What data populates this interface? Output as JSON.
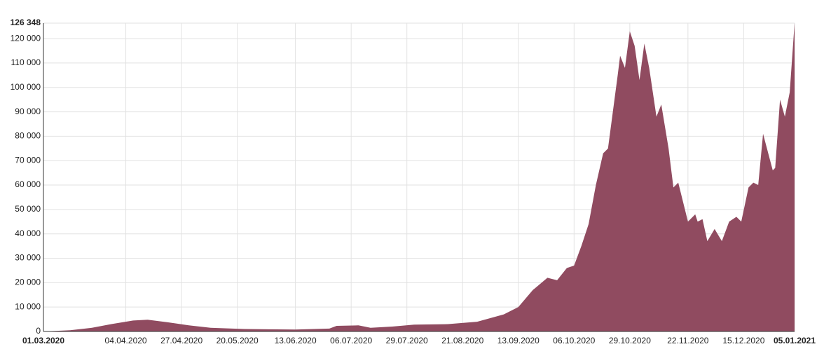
{
  "chart_data": {
    "type": "area",
    "color": "#904b60",
    "grid": true,
    "x": [
      "01.03.2020",
      "12.03.2020",
      "21.03.2020",
      "29.03.2020",
      "07.04.2020",
      "13.04.2020",
      "21.04.2020",
      "30.04.2020",
      "09.05.2020",
      "23.05.2020",
      "13.06.2020",
      "27.06.2020",
      "30.06.2020",
      "09.07.2020",
      "14.07.2020",
      "23.07.2020",
      "01.08.2020",
      "15.08.2020",
      "27.08.2020",
      "07.09.2020",
      "13.09.2020",
      "19.09.2020",
      "25.09.2020",
      "29.09.2020",
      "03.10.2020",
      "06.10.2020",
      "09.10.2020",
      "12.10.2020",
      "15.10.2020",
      "18.10.2020",
      "20.10.2020",
      "24.10.2020",
      "25.10.2020",
      "27.10.2020",
      "29.10.2020",
      "31.10.2020",
      "02.11.2020",
      "04.11.2020",
      "06.11.2020",
      "09.11.2020",
      "11.11.2020",
      "14.11.2020",
      "16.11.2020",
      "18.11.2020",
      "22.11.2020",
      "25.11.2020",
      "26.11.2020",
      "28.11.2020",
      "30.11.2020",
      "03.12.2020",
      "06.12.2020",
      "09.12.2020",
      "12.12.2020",
      "14.12.2020",
      "17.12.2020",
      "19.12.2020",
      "21.12.2020",
      "23.12.2020",
      "27.12.2020",
      "28.12.2020",
      "30.12.2020",
      "01.01.2021",
      "03.01.2021",
      "05.01.2021"
    ],
    "values": [
      0,
      500,
      1500,
      3000,
      4500,
      4800,
      3800,
      2500,
      1500,
      1000,
      800,
      1200,
      2300,
      2500,
      1500,
      2000,
      2800,
      3000,
      4000,
      7000,
      10000,
      17000,
      22000,
      21000,
      26000,
      27000,
      35000,
      44000,
      60000,
      73000,
      75000,
      105000,
      113000,
      108000,
      123000,
      117000,
      103000,
      118000,
      108000,
      88000,
      93000,
      75000,
      59000,
      61000,
      45000,
      48000,
      45000,
      46000,
      37000,
      42000,
      37000,
      45000,
      47000,
      45000,
      59000,
      61000,
      60000,
      81000,
      66000,
      67000,
      95000,
      88000,
      98000,
      126348
    ],
    "xlim": [
      "01.03.2020",
      "05.01.2021"
    ],
    "xticks": [
      "01.03.2020",
      "04.04.2020",
      "27.04.2020",
      "20.05.2020",
      "13.06.2020",
      "06.07.2020",
      "29.07.2020",
      "21.08.2020",
      "13.09.2020",
      "06.10.2020",
      "29.10.2020",
      "22.11.2020",
      "15.12.2020",
      "05.01.2021"
    ],
    "ylim": [
      0,
      126348
    ],
    "yticks": [
      0,
      {
        "value": 10000,
        "label": "10 000"
      },
      {
        "value": 20000,
        "label": "20 000"
      },
      {
        "value": 30000,
        "label": "30 000"
      },
      {
        "value": 40000,
        "label": "40 000"
      },
      {
        "value": 50000,
        "label": "50 000"
      },
      {
        "value": 60000,
        "label": "60 000"
      },
      {
        "value": 70000,
        "label": "70 000"
      },
      {
        "value": 80000,
        "label": "80 000"
      },
      {
        "value": 90000,
        "label": "90 000"
      },
      {
        "value": 100000,
        "label": "100 000"
      },
      {
        "value": 110000,
        "label": "110 000"
      },
      {
        "value": 120000,
        "label": "120 000"
      },
      {
        "value": 126348,
        "label": "126 348"
      }
    ]
  }
}
